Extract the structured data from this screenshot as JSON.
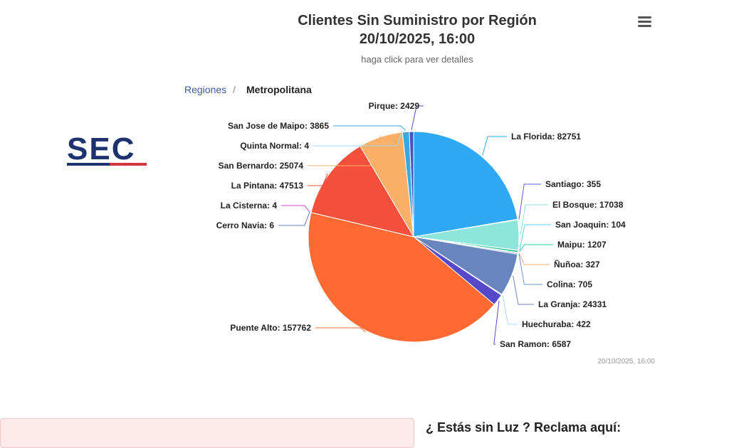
{
  "chart_data": {
    "type": "pie",
    "title": "Clientes Sin Suministro por Región",
    "title_date": "20/10/2025, 16:00",
    "subtitle": "haga click para ver detalles",
    "breadcrumb": {
      "parent": "Regiones",
      "separator": "/",
      "current": "Metropolitana"
    },
    "credit": "20/10/2025, 16:00",
    "slices": [
      {
        "name": "La Florida",
        "value": 82751,
        "color": "#2fa8f5"
      },
      {
        "name": "Santiago",
        "value": 355,
        "color": "#5a5fd6"
      },
      {
        "name": "El Bosque",
        "value": 17038,
        "color": "#8ce6dc"
      },
      {
        "name": "San Joaquin",
        "value": 104,
        "color": "#5ad1f0"
      },
      {
        "name": "Maipu",
        "value": 1207,
        "color": "#2ec49a"
      },
      {
        "name": "Ñuñoa",
        "value": 327,
        "color": "#f5b26b"
      },
      {
        "name": "Colina",
        "value": 705,
        "color": "#6e93d6"
      },
      {
        "name": "La Granja",
        "value": 24331,
        "color": "#6985bd"
      },
      {
        "name": "Huechuraba",
        "value": 422,
        "color": "#a8e0e6"
      },
      {
        "name": "San Ramon",
        "value": 6587,
        "color": "#5649c9"
      },
      {
        "name": "Puente Alto",
        "value": 157762,
        "color": "#ff6a33"
      },
      {
        "name": "Cerro Navia",
        "value": 6,
        "color": "#6a7ab8"
      },
      {
        "name": "La Cisterna",
        "value": 4,
        "color": "#d146d6"
      },
      {
        "name": "La Pintana",
        "value": 47513,
        "color": "#f5503c"
      },
      {
        "name": "San Bernardo",
        "value": 25074,
        "color": "#fbb06a"
      },
      {
        "name": "Quinta Normal",
        "value": 4,
        "color": "#a3d9ea"
      },
      {
        "name": "San Jose de Maipo",
        "value": 3865,
        "color": "#38a9e0"
      },
      {
        "name": "Pirque",
        "value": 2429,
        "color": "#4c52c2"
      }
    ]
  },
  "footer": {
    "claim_heading": "¿ Estás sin Luz ? Reclama aquí:"
  },
  "logo": {
    "text": "SEC",
    "colors": {
      "primary": "#1f3270",
      "accent": "#d0393b"
    }
  },
  "menu": {
    "icon": "hamburger-menu-icon"
  }
}
